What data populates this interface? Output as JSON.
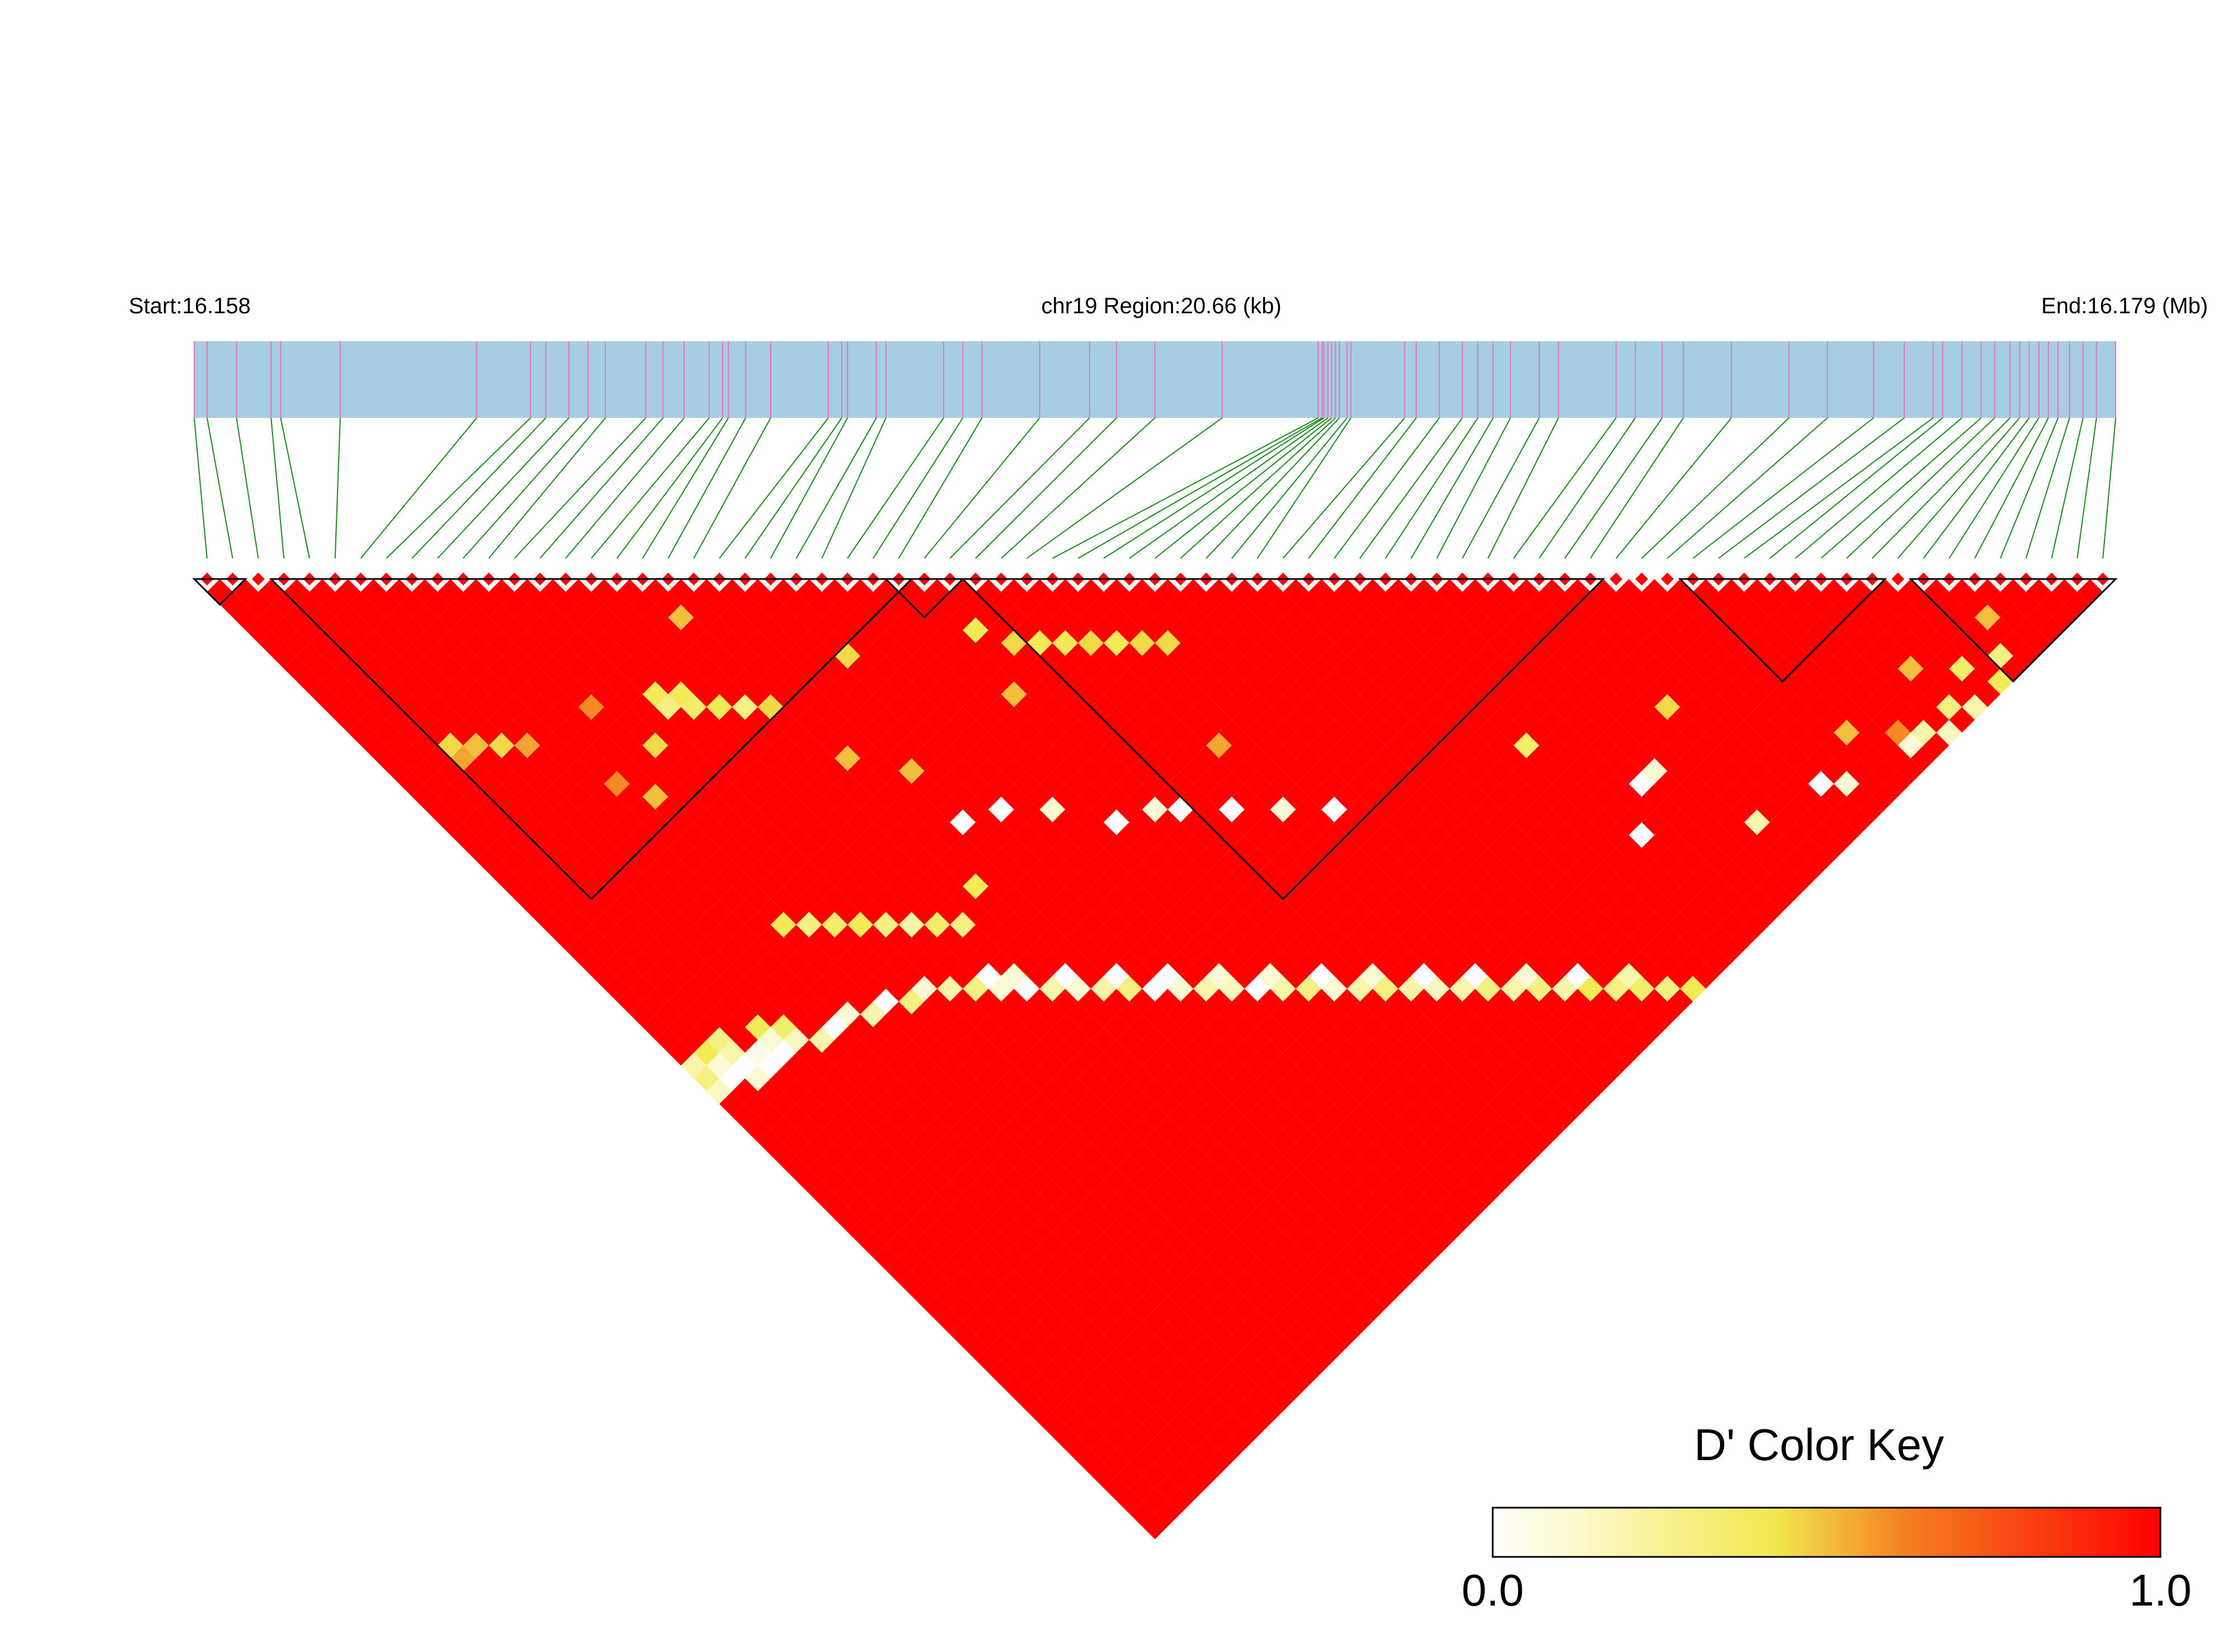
{
  "header": {
    "start_label": "Start:16.158",
    "region_label": "chr19 Region:20.66 (kb)",
    "end_label": "End:16.179 (Mb)"
  },
  "colors": {
    "track_fill": "#a6cde2",
    "snp_tick": "#e377c2",
    "connector": "#1a8a1a",
    "high_ld": "#ff0000",
    "block_outline": "#000000"
  },
  "chart_data": {
    "type": "heatmap",
    "subtype": "linkage-disequilibrium-triangle",
    "chromosome": "chr19",
    "region_start_mb": 16.158,
    "region_end_mb": 16.179,
    "region_length_kb": 20.66,
    "snp_count": 75,
    "snp_positions_fraction": [
      0.0,
      0.0067,
      0.022,
      0.04,
      0.045,
      0.076,
      0.147,
      0.175,
      0.183,
      0.195,
      0.205,
      0.214,
      0.235,
      0.244,
      0.255,
      0.268,
      0.275,
      0.278,
      0.287,
      0.3,
      0.33,
      0.337,
      0.34,
      0.355,
      0.36,
      0.39,
      0.4,
      0.41,
      0.44,
      0.466,
      0.48,
      0.5,
      0.535,
      0.585,
      0.587,
      0.588,
      0.59,
      0.592,
      0.594,
      0.596,
      0.6,
      0.602,
      0.63,
      0.636,
      0.648,
      0.66,
      0.668,
      0.676,
      0.685,
      0.7,
      0.71,
      0.74,
      0.75,
      0.764,
      0.775,
      0.8,
      0.83,
      0.85,
      0.874,
      0.89,
      0.905,
      0.91,
      0.92,
      0.93,
      0.937,
      0.945,
      0.95,
      0.955,
      0.96,
      0.965,
      0.97,
      0.976,
      0.983,
      0.99,
      1.0
    ],
    "haplotype_blocks": [
      [
        0,
        1
      ],
      [
        3,
        27
      ],
      [
        27,
        29
      ],
      [
        30,
        54
      ],
      [
        58,
        65
      ],
      [
        67,
        74
      ]
    ],
    "color_key": {
      "title": "D' Color Key",
      "min_label": "0.0",
      "max_label": "1.0",
      "min": 0.0,
      "max": 1.0,
      "colors": [
        "#ffffff",
        "#f2e94e",
        "#f57f20",
        "#ff0000"
      ]
    },
    "ld_metric": "D'",
    "default_value": 1.0,
    "low_ld_cells": [
      [
        1,
        40,
        0.0
      ],
      [
        2,
        40,
        0.0
      ],
      [
        3,
        40,
        0.05
      ],
      [
        4,
        40,
        0.1
      ],
      [
        2,
        41,
        0.1
      ],
      [
        3,
        41,
        0.0
      ],
      [
        4,
        41,
        0.0
      ],
      [
        5,
        41,
        0.15
      ],
      [
        1,
        39,
        0.1
      ],
      [
        2,
        39,
        0.2
      ],
      [
        6,
        42,
        0.2
      ],
      [
        7,
        42,
        0.0
      ],
      [
        8,
        42,
        0.1
      ],
      [
        9,
        43,
        0.2
      ],
      [
        10,
        43,
        0.0
      ],
      [
        11,
        44,
        0.3
      ],
      [
        12,
        44,
        0.1
      ],
      [
        13,
        45,
        0.2
      ],
      [
        14,
        46,
        0.3
      ],
      [
        15,
        47,
        0.1
      ],
      [
        16,
        48,
        0.0
      ],
      [
        17,
        49,
        0.2
      ],
      [
        18,
        50,
        0.1
      ],
      [
        19,
        51,
        0.2
      ],
      [
        20,
        52,
        0.3
      ],
      [
        21,
        53,
        0.0
      ],
      [
        22,
        54,
        0.1
      ],
      [
        23,
        55,
        0.2
      ],
      [
        24,
        56,
        0.15
      ],
      [
        25,
        57,
        0.0
      ],
      [
        26,
        58,
        0.2
      ],
      [
        27,
        59,
        0.3
      ],
      [
        28,
        60,
        0.1
      ],
      [
        29,
        61,
        0.2
      ],
      [
        30,
        62,
        0.3
      ],
      [
        31,
        63,
        0.2
      ],
      [
        32,
        64,
        0.15
      ],
      [
        33,
        65,
        0.2
      ],
      [
        34,
        66,
        0.3
      ],
      [
        35,
        67,
        0.2
      ],
      [
        36,
        68,
        0.3
      ],
      [
        37,
        69,
        0.2
      ],
      [
        38,
        70,
        0.4
      ],
      [
        39,
        71,
        0.3
      ],
      [
        40,
        72,
        0.35
      ],
      [
        41,
        73,
        0.3
      ],
      [
        42,
        74,
        0.4
      ],
      [
        15,
        46,
        0.0
      ],
      [
        16,
        47,
        0.1
      ],
      [
        18,
        49,
        0.0
      ],
      [
        20,
        51,
        0.0
      ],
      [
        22,
        53,
        0.0
      ],
      [
        24,
        55,
        0.1
      ],
      [
        26,
        57,
        0.1
      ],
      [
        28,
        59,
        0.0
      ],
      [
        30,
        61,
        0.1
      ],
      [
        32,
        63,
        0.0
      ],
      [
        34,
        65,
        0.0
      ],
      [
        36,
        67,
        0.1
      ],
      [
        38,
        69,
        0.0
      ],
      [
        40,
        71,
        0.2
      ],
      [
        48,
        64,
        0.0
      ],
      [
        49,
        64,
        0.1
      ],
      [
        46,
        66,
        0.0
      ],
      [
        51,
        70,
        0.2
      ],
      [
        55,
        71,
        0.0
      ],
      [
        56,
        72,
        0.1
      ],
      [
        60,
        73,
        0.1
      ],
      [
        61,
        73,
        0.2
      ],
      [
        62,
        74,
        0.15
      ],
      [
        63,
        73,
        0.3
      ],
      [
        64,
        74,
        0.2
      ],
      [
        65,
        72,
        0.35
      ],
      [
        66,
        74,
        0.4
      ],
      [
        67,
        73,
        0.3
      ],
      [
        0,
        38,
        0.2
      ],
      [
        0,
        39,
        0.3
      ],
      [
        0,
        40,
        0.15
      ],
      [
        1,
        38,
        0.4
      ],
      [
        2,
        38,
        0.3
      ],
      [
        4,
        39,
        0.4
      ],
      [
        5,
        40,
        0.35
      ],
      [
        18,
        42,
        0.4
      ],
      [
        20,
        39,
        0.0
      ],
      [
        22,
        40,
        0.0
      ],
      [
        24,
        42,
        0.1
      ],
      [
        26,
        45,
        0.0
      ],
      [
        28,
        46,
        0.1
      ],
      [
        29,
        47,
        0.0
      ],
      [
        31,
        49,
        0.0
      ],
      [
        33,
        51,
        0.1
      ],
      [
        35,
        53,
        0.0
      ],
      [
        9,
        36,
        0.4
      ],
      [
        10,
        37,
        0.3
      ],
      [
        11,
        38,
        0.35
      ],
      [
        12,
        39,
        0.4
      ],
      [
        13,
        40,
        0.3
      ],
      [
        14,
        41,
        0.2
      ],
      [
        15,
        42,
        0.35
      ],
      [
        16,
        43,
        0.3
      ],
      [
        13,
        22,
        0.4
      ],
      [
        13,
        23,
        0.3
      ],
      [
        14,
        24,
        0.35
      ],
      [
        15,
        25,
        0.4
      ],
      [
        16,
        26,
        0.3
      ],
      [
        14,
        23,
        0.4
      ],
      [
        17,
        27,
        0.45
      ],
      [
        28,
        32,
        0.4
      ],
      [
        29,
        34,
        0.45
      ],
      [
        30,
        35,
        0.4
      ],
      [
        31,
        36,
        0.4
      ],
      [
        32,
        37,
        0.45
      ],
      [
        33,
        38,
        0.4
      ],
      [
        34,
        39,
        0.45
      ],
      [
        35,
        40,
        0.45
      ],
      [
        3,
        16,
        0.45
      ],
      [
        4,
        17,
        0.5
      ],
      [
        5,
        18,
        0.45
      ],
      [
        6,
        19,
        0.55
      ],
      [
        3,
        17,
        0.55
      ],
      [
        11,
        24,
        0.45
      ],
      [
        17,
        20,
        0.5
      ],
      [
        8,
        24,
        0.6
      ],
      [
        22,
        28,
        0.45
      ],
      [
        10,
        20,
        0.6
      ],
      [
        9,
        26,
        0.5
      ],
      [
        18,
        32,
        0.5
      ],
      [
        20,
        35,
        0.5
      ],
      [
        27,
        36,
        0.5
      ],
      [
        33,
        46,
        0.55
      ],
      [
        45,
        58,
        0.35
      ],
      [
        52,
        62,
        0.45
      ],
      [
        58,
        70,
        0.5
      ],
      [
        60,
        72,
        0.6
      ],
      [
        63,
        70,
        0.5
      ],
      [
        68,
        71,
        0.5
      ]
    ]
  }
}
